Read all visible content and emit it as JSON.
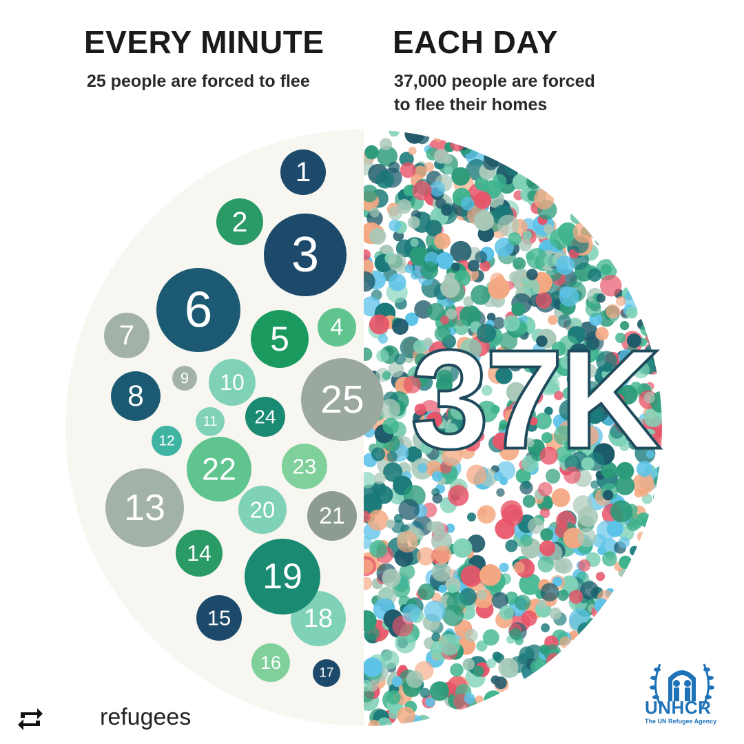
{
  "header": {
    "left_title": "EVERY MINUTE",
    "left_sub": "25 people are forced to flee",
    "right_title": "EACH DAY",
    "right_sub_line1": "37,000 people are forced",
    "right_sub_line2": "to flee their homes"
  },
  "center_label": "37K",
  "minute_bubbles": [
    {
      "n": "1",
      "color": "#1d4a6b"
    },
    {
      "n": "2",
      "color": "#2a9a66"
    },
    {
      "n": "3",
      "color": "#1d4a6b"
    },
    {
      "n": "4",
      "color": "#5fc48e"
    },
    {
      "n": "5",
      "color": "#1a9a5e"
    },
    {
      "n": "6",
      "color": "#1b5a72"
    },
    {
      "n": "7",
      "color": "#a2b2a6"
    },
    {
      "n": "8",
      "color": "#1b5a72"
    },
    {
      "n": "9",
      "color": "#a2b2a6"
    },
    {
      "n": "10",
      "color": "#7fd2b8"
    },
    {
      "n": "11",
      "color": "#7fd2b8"
    },
    {
      "n": "12",
      "color": "#3fb4a2"
    },
    {
      "n": "13",
      "color": "#a2b2a6"
    },
    {
      "n": "14",
      "color": "#2a9a66"
    },
    {
      "n": "15",
      "color": "#1d4a6b"
    },
    {
      "n": "16",
      "color": "#7fd09a"
    },
    {
      "n": "17",
      "color": "#1d4a6b"
    },
    {
      "n": "18",
      "color": "#7fd2b8"
    },
    {
      "n": "19",
      "color": "#1a8a72"
    },
    {
      "n": "20",
      "color": "#7fd2b8"
    },
    {
      "n": "21",
      "color": "#8c9c92"
    },
    {
      "n": "22",
      "color": "#5fc48e"
    },
    {
      "n": "23",
      "color": "#7fd09a"
    },
    {
      "n": "24",
      "color": "#1a8a72"
    },
    {
      "n": "25",
      "color": "#9aa89e"
    }
  ],
  "dot_palette": [
    "#2a9a78",
    "#1d5a6a",
    "#e85468",
    "#7fd2b8",
    "#5cc2e8",
    "#f4a882",
    "#3fb48e",
    "#1b7a7a",
    "#a8c8b8"
  ],
  "footer": {
    "username": "refugees",
    "repost_icon": "repost-icon"
  },
  "logo": {
    "name": "UNHCR",
    "tagline": "The UN Refugee Agency",
    "color": "#1e72b8"
  },
  "colors": {
    "circle_bg": "#f7f6f0",
    "title": "#1a1a1a"
  }
}
